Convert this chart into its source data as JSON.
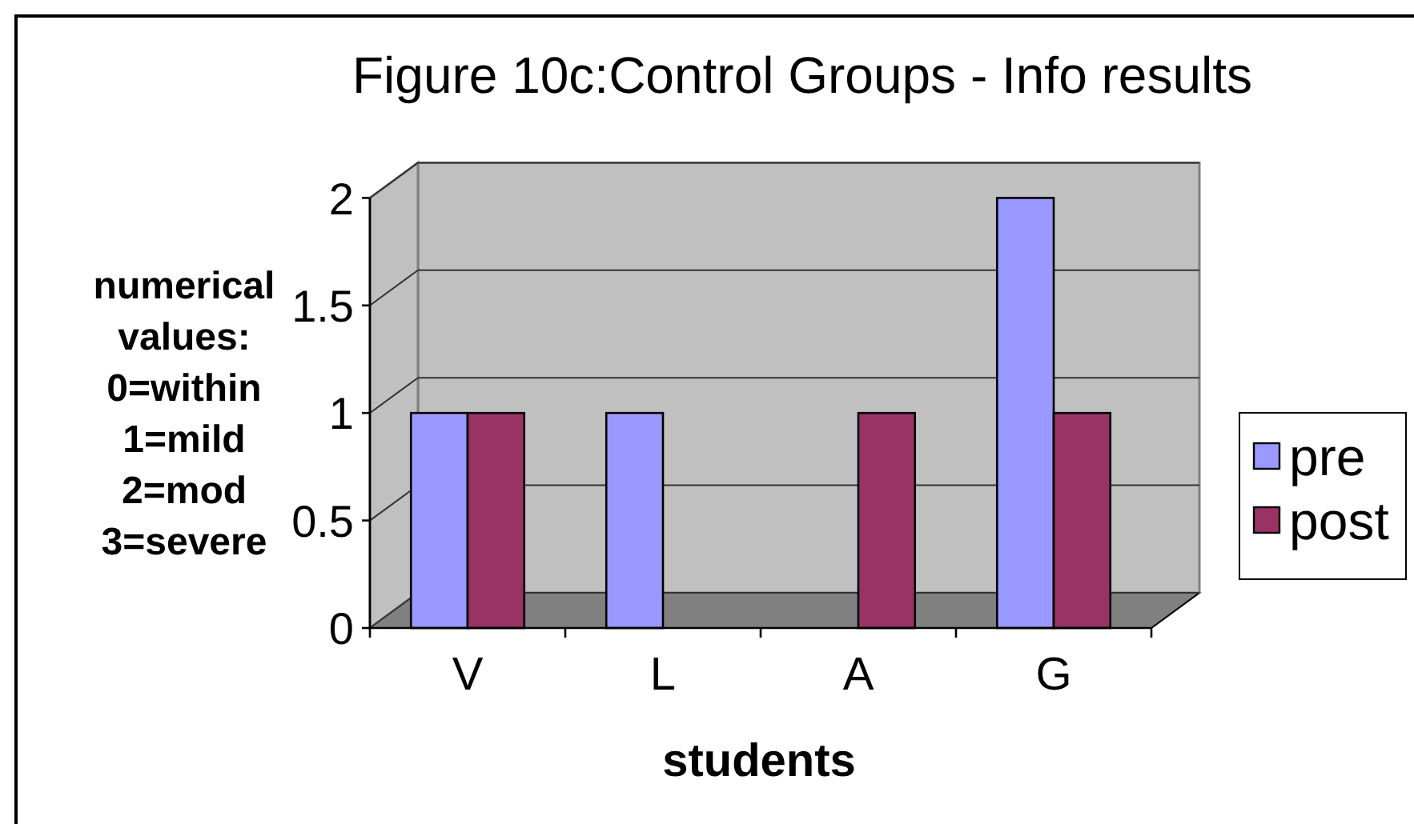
{
  "chart_data": {
    "type": "bar",
    "title": "Figure 10c:Control Groups - Info results",
    "xlabel": "students",
    "ylabel": "numerical values: 0=within 1=mild 2=mod 3=severe",
    "categories": [
      "V",
      "L",
      "A",
      "G"
    ],
    "series": [
      {
        "name": "pre",
        "color": "#9999ff",
        "values": [
          1,
          1,
          0,
          2
        ]
      },
      {
        "name": "post",
        "color": "#993366",
        "values": [
          1,
          0,
          1,
          1
        ]
      }
    ],
    "ylim": [
      0,
      2
    ],
    "yticks": [
      0,
      0.5,
      1,
      1.5,
      2
    ],
    "grid": "y",
    "legend": "right"
  }
}
